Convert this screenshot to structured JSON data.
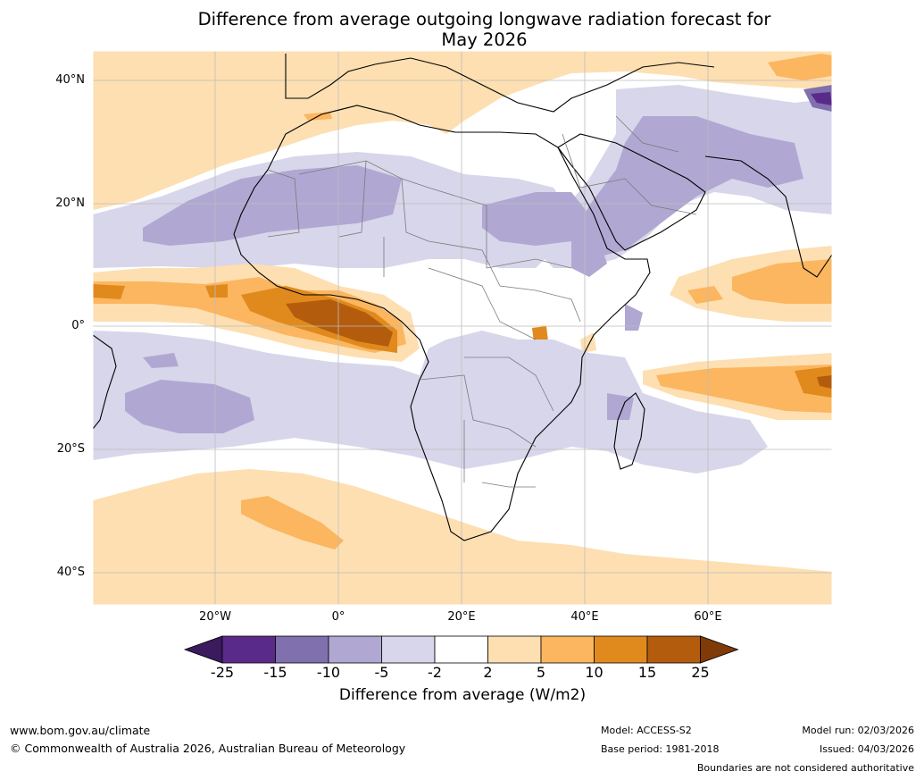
{
  "title_line1": "Difference from average outgoing longwave radiation forecast for",
  "title_line2": "May 2026",
  "map": {
    "lat_labels": [
      "40°N",
      "20°N",
      "0°",
      "20°S",
      "40°S"
    ],
    "lon_labels": [
      "20°W",
      "0°",
      "20°E",
      "40°E",
      "60°E"
    ],
    "lat_range_deg": [
      -45,
      45
    ],
    "lon_range_deg": [
      -40,
      80
    ]
  },
  "legend": {
    "ticks": [
      "-25",
      "-15",
      "-10",
      "-5",
      "-2",
      "2",
      "5",
      "10",
      "15",
      "25"
    ],
    "colors": [
      "#3b1a5e",
      "#5a2a8a",
      "#8070ae",
      "#b0a8d2",
      "#d8d6ea",
      "#ffffff",
      "#fddfb2",
      "#fbb65f",
      "#e08a1d",
      "#b45c0e",
      "#7f3a08"
    ],
    "label": "Difference from average (W/m2)"
  },
  "footer": {
    "website": "www.bom.gov.au/climate",
    "copyright": "© Commonwealth of Australia 2026, Australian Bureau of Meteorology",
    "model": "Model: ACCESS-S2",
    "base_period": "Base period: 1981-2018",
    "model_run": "Model run: 02/03/2026",
    "issued": "Issued: 04/03/2026",
    "boundaries": "Boundaries are not considered authoritative"
  }
}
